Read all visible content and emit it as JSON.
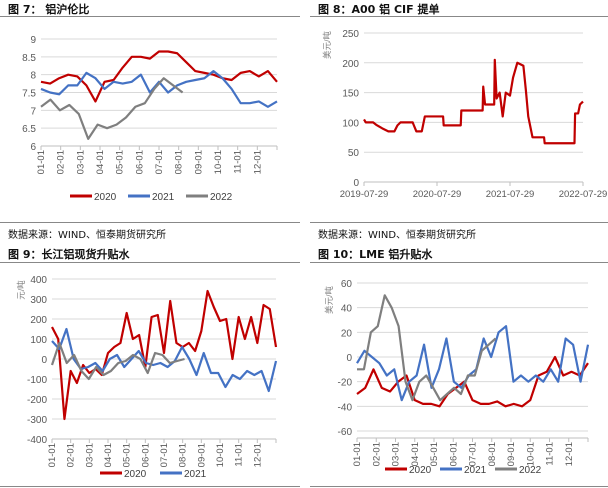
{
  "panels": [
    {
      "title": "图 7：  铝沪伦比",
      "source": "数据来源：WIND、恒泰期货研究所"
    },
    {
      "title": "图 8：A00 铝 CIF 提单",
      "source": "数据来源：WIND、恒泰期货研究所"
    },
    {
      "title": "图 9：长江铝现货升贴水"
    },
    {
      "title": "图 10：LME 铝升贴水"
    }
  ],
  "colors": {
    "2020": "#c00000",
    "2021": "#4472c4",
    "2022": "#7f7f7f"
  },
  "chart_data": [
    {
      "type": "line",
      "title": "铝沪伦比",
      "ylabel": "",
      "ylim": [
        6,
        9
      ],
      "yticks": [
        "6",
        "6.5",
        "7",
        "7.5",
        "8",
        "8.5",
        "9"
      ],
      "ytick_values": [
        6,
        6.5,
        7,
        7.5,
        8,
        8.5,
        9
      ],
      "xticks": [
        "01-01",
        "02-01",
        "03-01",
        "04-01",
        "05-01",
        "06-01",
        "07-01",
        "08-01",
        "09-01",
        "10-01",
        "11-01",
        "12-01"
      ],
      "xlim": [
        0,
        12
      ],
      "legend": [
        "2020",
        "2021",
        "2022"
      ],
      "series": [
        {
          "name": "2020",
          "x_end": 12,
          "values": [
            7.8,
            7.75,
            7.9,
            8.0,
            7.95,
            7.7,
            7.25,
            7.8,
            7.85,
            8.2,
            8.5,
            8.5,
            8.45,
            8.65,
            8.65,
            8.6,
            8.35,
            8.1,
            8.05,
            8.0,
            7.9,
            7.85,
            8.05,
            8.1,
            7.95,
            8.1,
            7.8
          ]
        },
        {
          "name": "2021",
          "x_end": 12,
          "values": [
            7.6,
            7.5,
            7.45,
            7.7,
            7.7,
            8.05,
            7.9,
            7.6,
            7.8,
            7.75,
            7.8,
            8.0,
            7.5,
            7.8,
            7.5,
            7.7,
            7.8,
            7.85,
            7.9,
            8.1,
            7.9,
            7.6,
            7.2,
            7.2,
            7.25,
            7.1,
            7.25
          ]
        },
        {
          "name": "2022",
          "x_end": 7.2,
          "values": [
            7.1,
            7.3,
            7.0,
            7.15,
            6.9,
            6.2,
            6.6,
            6.5,
            6.6,
            6.8,
            7.1,
            7.2,
            7.6,
            7.9,
            7.7,
            7.5
          ]
        }
      ]
    },
    {
      "type": "line",
      "title": "A00 铝 CIF 提单",
      "ylabel": "美元/吨",
      "ylim": [
        0,
        250
      ],
      "yticks": [
        "0",
        "50",
        "100",
        "150",
        "200",
        "250"
      ],
      "ytick_values": [
        0,
        50,
        100,
        150,
        200,
        250
      ],
      "xticks": [
        "2019-07-29",
        "2020-07-29",
        "2021-07-29",
        "2022-07-29"
      ],
      "xtick_months": [
        0,
        12,
        24,
        36
      ],
      "xlim": [
        0,
        36
      ],
      "series": [
        {
          "name": "CIF",
          "points": [
            [
              0,
              105
            ],
            [
              0.3,
              100
            ],
            [
              1.5,
              100
            ],
            [
              2,
              96
            ],
            [
              3,
              90
            ],
            [
              4,
              85
            ],
            [
              5,
              85
            ],
            [
              5.5,
              95
            ],
            [
              6,
              100
            ],
            [
              8,
              100
            ],
            [
              8.2,
              95
            ],
            [
              8.6,
              85
            ],
            [
              9.5,
              85
            ],
            [
              10,
              110
            ],
            [
              13,
              110
            ],
            [
              13.1,
              95
            ],
            [
              15.9,
              95
            ],
            [
              16,
              120
            ],
            [
              19.5,
              120
            ],
            [
              19.6,
              160
            ],
            [
              19.9,
              130
            ],
            [
              21.4,
              130
            ],
            [
              21.5,
              205
            ],
            [
              21.8,
              140
            ],
            [
              22.3,
              150
            ],
            [
              22.8,
              110
            ],
            [
              23.3,
              150
            ],
            [
              24,
              145
            ],
            [
              24.5,
              175
            ],
            [
              25.2,
              200
            ],
            [
              26.2,
              195
            ],
            [
              26.6,
              155
            ],
            [
              27,
              110
            ],
            [
              27.7,
              75
            ],
            [
              29.6,
              75
            ],
            [
              29.7,
              65
            ],
            [
              34.6,
              65
            ],
            [
              34.7,
              115
            ],
            [
              35.2,
              115
            ],
            [
              35.5,
              130
            ],
            [
              36,
              135
            ]
          ]
        }
      ]
    },
    {
      "type": "line",
      "title": "长江铝现货升贴水",
      "ylabel": "元/吨",
      "ylim": [
        -400,
        400
      ],
      "yticks": [
        "-400",
        "-300",
        "-200",
        "-100",
        "0",
        "100",
        "200",
        "300",
        "400"
      ],
      "ytick_values": [
        -400,
        -300,
        -200,
        -100,
        0,
        100,
        200,
        300,
        400
      ],
      "xticks": [
        "01-01",
        "02-01",
        "03-01",
        "04-01",
        "05-01",
        "06-01",
        "07-01",
        "08-01",
        "09-01",
        "10-01",
        "11-01",
        "12-01"
      ],
      "xlim": [
        0,
        12
      ],
      "legend": [
        "2020",
        "2021"
      ],
      "series": [
        {
          "name": "2020",
          "x_end": 12,
          "values": [
            160,
            100,
            -300,
            -60,
            -120,
            -30,
            -70,
            -50,
            -80,
            30,
            60,
            80,
            230,
            100,
            120,
            -40,
            210,
            220,
            30,
            290,
            80,
            60,
            80,
            40,
            140,
            340,
            260,
            190,
            200,
            0,
            210,
            100,
            210,
            80,
            270,
            250,
            60
          ]
        },
        {
          "name": "2021",
          "x_end": 12,
          "values": [
            90,
            50,
            150,
            0,
            -50,
            -40,
            -20,
            -60,
            0,
            20,
            -40,
            0,
            40,
            -20,
            -30,
            -20,
            -40,
            -10,
            60,
            0,
            -80,
            30,
            -70,
            -70,
            -140,
            -80,
            -100,
            -60,
            -80,
            -60,
            -160,
            -10
          ]
        },
        {
          "name": "2022",
          "x_end": 7.1,
          "values": [
            -30,
            80,
            -20,
            20,
            -60,
            -100,
            -40,
            -80,
            -60,
            -20,
            -10,
            20,
            0,
            -70,
            30,
            20,
            -20,
            -10,
            0
          ]
        }
      ]
    },
    {
      "type": "line",
      "title": "LME 铝升贴水",
      "ylabel": "美元/吨",
      "ylim": [
        -60,
        60
      ],
      "yticks": [
        "-60",
        "-40",
        "-20",
        "0",
        "20",
        "40",
        "60"
      ],
      "ytick_values": [
        -60,
        -40,
        -20,
        0,
        20,
        40,
        60
      ],
      "xticks": [
        "01-01",
        "02-01",
        "03-01",
        "04-01",
        "05-01",
        "06-01",
        "07-01",
        "08-01",
        "09-01",
        "10-01",
        "11-01",
        "12-01"
      ],
      "xlim": [
        0,
        12
      ],
      "legend": [
        "2020",
        "2021",
        "2022"
      ],
      "series": [
        {
          "name": "2020",
          "x_end": 12,
          "values": [
            -30,
            -25,
            -10,
            -25,
            -28,
            -20,
            -15,
            -35,
            -38,
            -38,
            -40,
            -30,
            -25,
            -20,
            -35,
            -38,
            -38,
            -36,
            -40,
            -38,
            -40,
            -35,
            -15,
            -12,
            0,
            -15,
            -12,
            -15,
            -5
          ]
        },
        {
          "name": "2021",
          "x_end": 12,
          "values": [
            -5,
            5,
            0,
            -5,
            -15,
            -10,
            -35,
            -20,
            -15,
            10,
            -25,
            -10,
            15,
            -20,
            -25,
            -15,
            -10,
            15,
            0,
            20,
            25,
            -20,
            -15,
            -20,
            -15,
            -20,
            -10,
            -20,
            15,
            10,
            -20,
            10
          ]
        },
        {
          "name": "2022",
          "x_end": 7.2,
          "values": [
            -10,
            -10,
            20,
            25,
            50,
            40,
            25,
            -20,
            -35,
            -20,
            -15,
            -25,
            -35,
            -30,
            -25,
            -30,
            -15,
            -15,
            5,
            10,
            15
          ]
        }
      ]
    }
  ]
}
